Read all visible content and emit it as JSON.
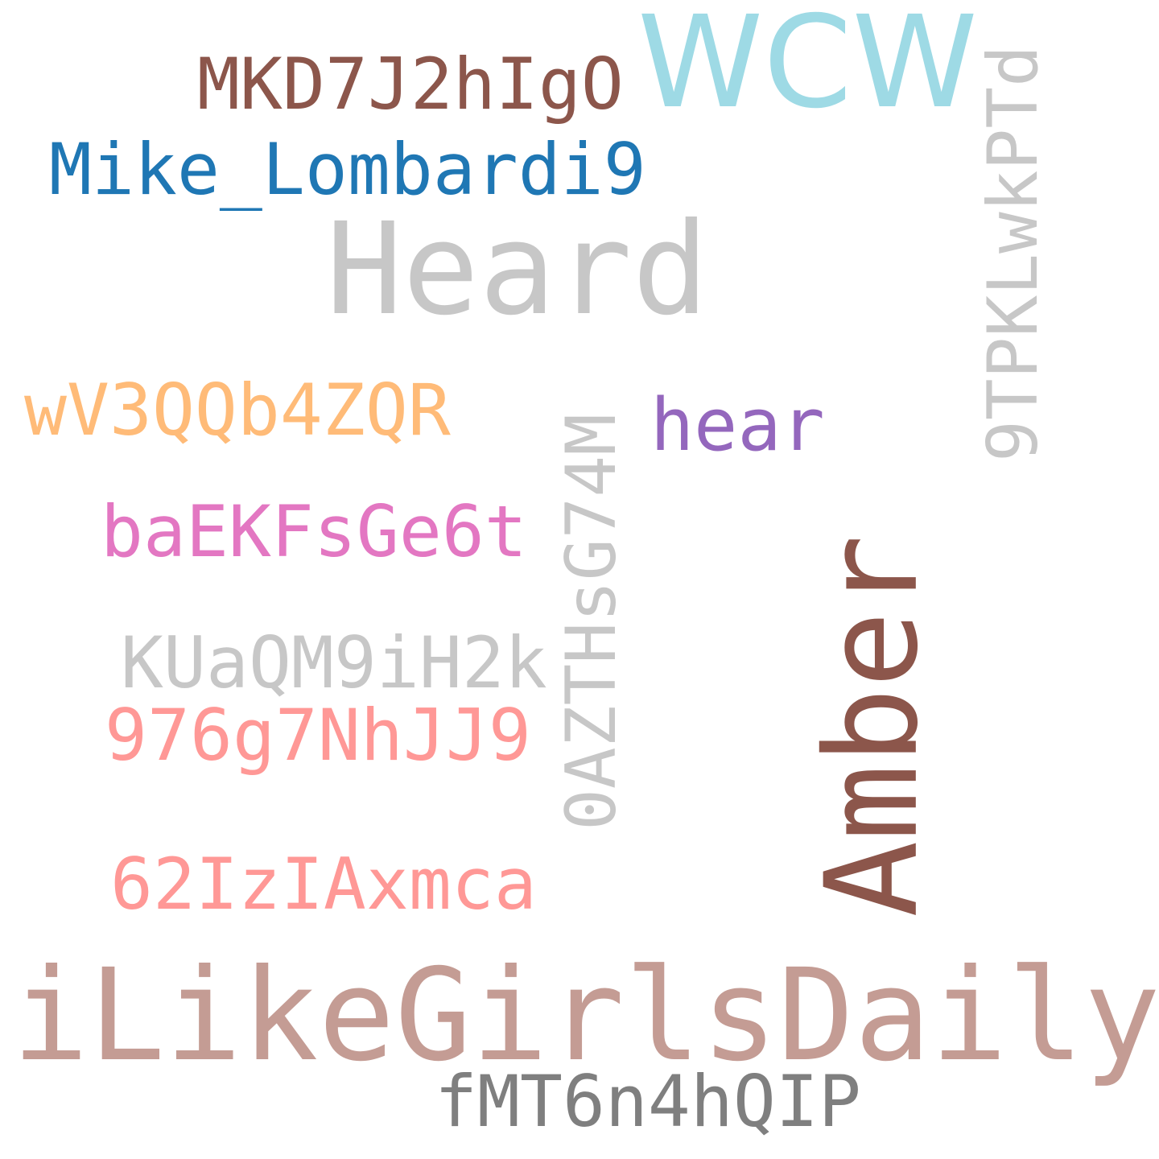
{
  "words": {
    "mkd": {
      "text": "MKD7J2hIgO",
      "color": "#8c564b"
    },
    "wcw": {
      "text": "WCW",
      "color": "#9edae5"
    },
    "mike": {
      "text": "Mike_Lombardi9",
      "color": "#1f77b4"
    },
    "heard": {
      "text": "Heard",
      "color": "#c7c7c7"
    },
    "ninetpk": {
      "text": "9TPKLwkPTd",
      "color": "#c7c7c7"
    },
    "wv3": {
      "text": "wV3QQb4ZQR",
      "color": "#ffbb78"
    },
    "hear": {
      "text": "hear",
      "color": "#9467bd"
    },
    "oazth": {
      "text": "0AZTHsG74M",
      "color": "#c7c7c7"
    },
    "baek": {
      "text": "baEKFsGe6t",
      "color": "#e377c2"
    },
    "amber": {
      "text": "Amber",
      "color": "#8c564b"
    },
    "kua": {
      "text": "KUaQM9iH2k",
      "color": "#c7c7c7"
    },
    "n976": {
      "text": "976g7NhJJ9",
      "color": "#ff9896"
    },
    "n62": {
      "text": "62IzIAxmca",
      "color": "#ff9896"
    },
    "ilike": {
      "text": "iLikeGirlsDaily",
      "color": "#c49c94"
    },
    "fmt": {
      "text": "fMT6n4hQIP",
      "color": "#7f7f7f"
    }
  }
}
